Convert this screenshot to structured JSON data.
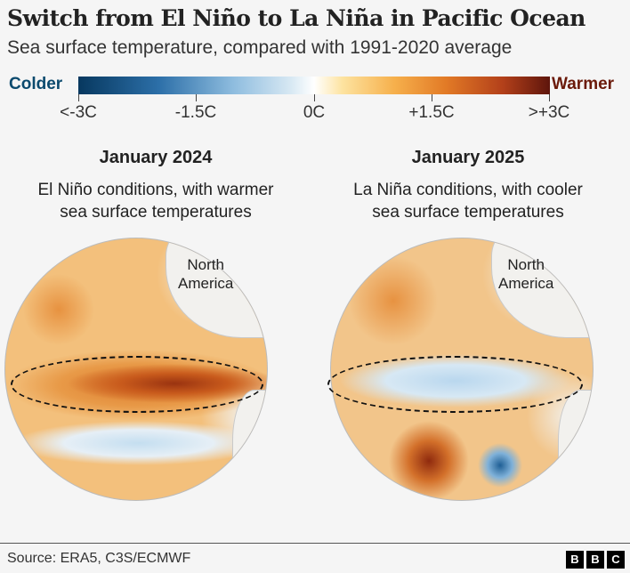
{
  "title": "Switch from El Niño to La Niña in Pacific Ocean",
  "subtitle": "Sea surface temperature, compared with 1991-2020 average",
  "legend": {
    "left_label": "Colder",
    "right_label": "Warmer",
    "ticks": [
      "<-3C",
      "-1.5C",
      "0C",
      "+1.5C",
      ">+3C"
    ],
    "range_c": [
      -3,
      3
    ],
    "colors": {
      "cold": "#07385f",
      "neutral": "#ffffff",
      "warm": "#5e150c"
    }
  },
  "panels": [
    {
      "heading": "January 2024",
      "description_line1": "El Niño conditions, with warmer",
      "description_line2": "sea surface temperatures",
      "region_label_line1": "North",
      "region_label_line2": "America"
    },
    {
      "heading": "January 2025",
      "description_line1": "La Niña conditions, with cooler",
      "description_line2": "sea surface temperatures",
      "region_label_line1": "North",
      "region_label_line2": "America"
    }
  ],
  "source": "Source: ERA5, C3S/ECMWF",
  "logo": [
    "B",
    "B",
    "C"
  ]
}
